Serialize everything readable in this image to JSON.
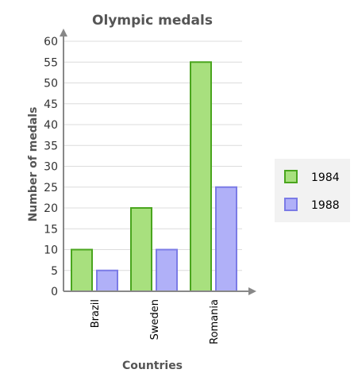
{
  "chart_data": {
    "type": "bar",
    "title": "Olympic medals",
    "xlabel": "Countries",
    "ylabel": "Number of medals",
    "categories": [
      "Brazil",
      "Sweden",
      "Romania"
    ],
    "series": [
      {
        "name": "1984",
        "values": [
          10,
          20,
          55
        ],
        "fill": "#a8e07e",
        "stroke": "#4aa51e"
      },
      {
        "name": "1988",
        "values": [
          5,
          10,
          25
        ],
        "fill": "#b0b0f8",
        "stroke": "#7b7be6"
      }
    ],
    "ylim": [
      0,
      60
    ],
    "ytick_step": 5,
    "grid": true,
    "legend_position": "right"
  }
}
